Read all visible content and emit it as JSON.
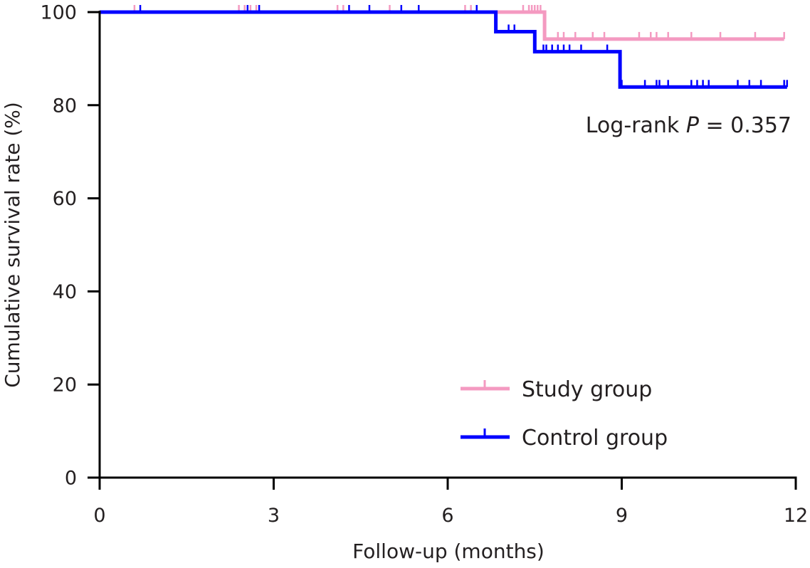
{
  "chart_data": {
    "type": "line",
    "step": true,
    "title": "",
    "xlabel": "Follow-up (months)",
    "ylabel": "Cumulative survival rate (%)",
    "xlim": [
      0,
      12
    ],
    "ylim": [
      0,
      100
    ],
    "xticks": [
      "0",
      "3",
      "6",
      "9",
      "12"
    ],
    "yticks": [
      "0",
      "20",
      "40",
      "60",
      "80",
      "100"
    ],
    "grid": false,
    "legend_position": "bottom-right",
    "annotation": {
      "prefix": "Log-rank ",
      "italic": "P",
      "suffix": " = 0.357"
    },
    "series": [
      {
        "name": "Study group",
        "color": "#f49ac1",
        "steps": [
          [
            0,
            100
          ],
          [
            7.67,
            100
          ],
          [
            7.67,
            94.2
          ],
          [
            11.8,
            94.2
          ]
        ],
        "censored": [
          [
            0.6,
            100
          ],
          [
            2.4,
            100
          ],
          [
            2.5,
            100
          ],
          [
            2.6,
            100
          ],
          [
            2.7,
            100
          ],
          [
            4.1,
            100
          ],
          [
            4.2,
            100
          ],
          [
            5.0,
            100
          ],
          [
            5.5,
            100
          ],
          [
            6.3,
            100
          ],
          [
            6.4,
            100
          ],
          [
            6.5,
            100
          ],
          [
            7.3,
            100
          ],
          [
            7.4,
            100
          ],
          [
            7.45,
            100
          ],
          [
            7.5,
            100
          ],
          [
            7.55,
            100
          ],
          [
            7.6,
            100
          ],
          [
            7.9,
            94.2
          ],
          [
            8.0,
            94.2
          ],
          [
            8.2,
            94.2
          ],
          [
            8.5,
            94.2
          ],
          [
            8.7,
            94.2
          ],
          [
            9.3,
            94.2
          ],
          [
            9.5,
            94.2
          ],
          [
            9.6,
            94.2
          ],
          [
            9.8,
            94.2
          ],
          [
            10.2,
            94.2
          ],
          [
            10.7,
            94.2
          ],
          [
            11.3,
            94.2
          ],
          [
            11.8,
            94.2
          ]
        ]
      },
      {
        "name": "Control group",
        "color": "#0000ff",
        "steps": [
          [
            0,
            100
          ],
          [
            6.83,
            100
          ],
          [
            6.83,
            95.8
          ],
          [
            7.5,
            95.8
          ],
          [
            7.5,
            91.5
          ],
          [
            8.97,
            91.5
          ],
          [
            8.97,
            83.9
          ],
          [
            11.85,
            83.9
          ]
        ],
        "censored": [
          [
            0.7,
            100
          ],
          [
            2.55,
            100
          ],
          [
            2.75,
            100
          ],
          [
            4.3,
            100
          ],
          [
            4.65,
            100
          ],
          [
            5.2,
            100
          ],
          [
            5.5,
            100
          ],
          [
            6.5,
            100
          ],
          [
            7.05,
            95.8
          ],
          [
            7.15,
            95.8
          ],
          [
            7.65,
            91.5
          ],
          [
            7.7,
            91.5
          ],
          [
            7.8,
            91.5
          ],
          [
            7.9,
            91.5
          ],
          [
            8.0,
            91.5
          ],
          [
            8.1,
            91.5
          ],
          [
            8.3,
            91.5
          ],
          [
            8.75,
            91.5
          ],
          [
            9.0,
            83.9
          ],
          [
            9.4,
            83.9
          ],
          [
            9.6,
            83.9
          ],
          [
            9.65,
            83.9
          ],
          [
            9.8,
            83.9
          ],
          [
            10.2,
            83.9
          ],
          [
            10.3,
            83.9
          ],
          [
            10.4,
            83.9
          ],
          [
            10.5,
            83.9
          ],
          [
            11.0,
            83.9
          ],
          [
            11.2,
            83.9
          ],
          [
            11.4,
            83.9
          ],
          [
            11.8,
            83.9
          ],
          [
            11.85,
            83.9
          ]
        ]
      }
    ]
  }
}
